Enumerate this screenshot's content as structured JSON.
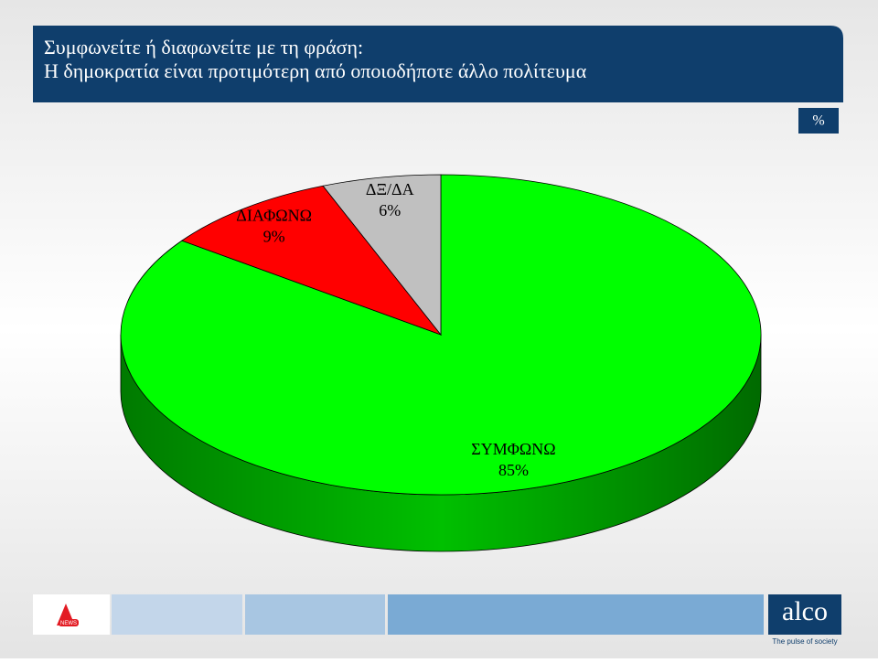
{
  "header": {
    "title_line1": "Συμφωνείτε ή διαφωνείτε με τη φράση:",
    "title_line2": "Η δημοκρατία είναι προτιμότερη από οποιοδήποτε άλλο πολίτευμα",
    "unit_badge": "%"
  },
  "chart_data": {
    "type": "pie3d",
    "categories": [
      "ΣΥΜΦΩΝΩ",
      "ΔΙΑΦΩΝΩ",
      "ΔΞ/ΔΑ"
    ],
    "values": [
      85,
      9,
      6
    ],
    "value_labels": [
      "85%",
      "9%",
      "6%"
    ],
    "colors": [
      "#00ff00",
      "#ff0000",
      "#c0c0c0"
    ],
    "side_color": "#00a400"
  },
  "footer": {
    "left_logo_text": "NEWS",
    "brand": "alco",
    "tagline": "The pulse of society"
  }
}
